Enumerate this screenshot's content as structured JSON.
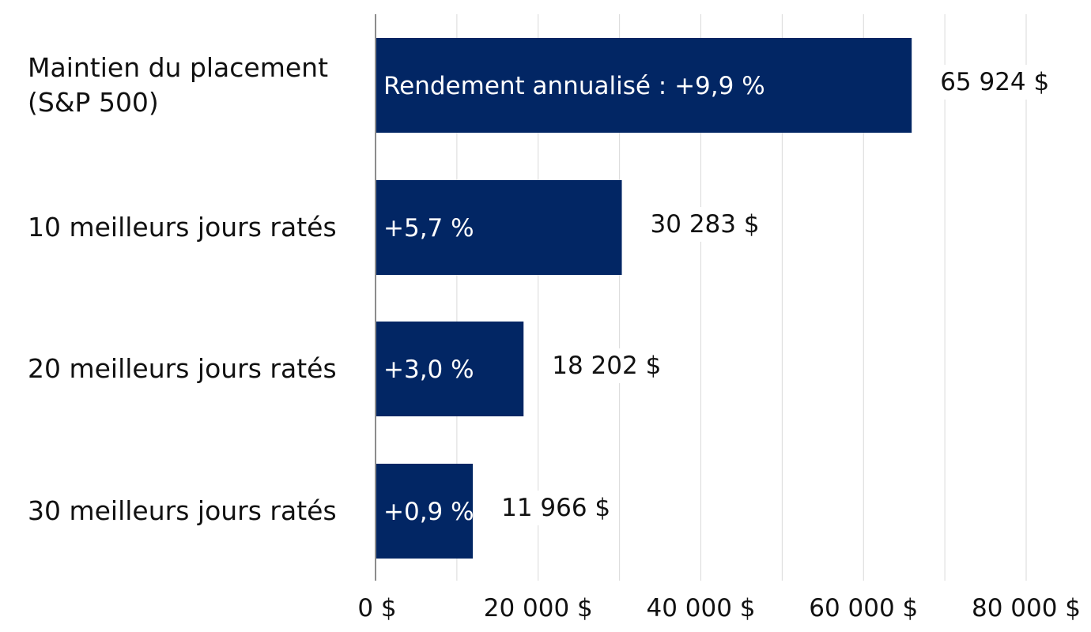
{
  "chart_data": {
    "type": "bar",
    "orientation": "horizontal",
    "categories": [
      [
        "Maintien du placement",
        "(S&P 500)"
      ],
      [
        "10 meilleurs jours ratés"
      ],
      [
        "20 meilleurs jours ratés"
      ],
      [
        "30 meilleurs jours ratés"
      ]
    ],
    "values": [
      65924,
      30283,
      18202,
      11966
    ],
    "value_labels": [
      "65 924 $",
      "30 283 $",
      "18 202 $",
      "11 966 $"
    ],
    "annualized_return_labels": [
      "Rendement annualisé : +9,9 %",
      "+5,7 %",
      "+3,0 %",
      "+0,9 %"
    ],
    "xlim": [
      0,
      80000
    ],
    "x_ticks": [
      0,
      20000,
      40000,
      60000,
      80000
    ],
    "x_tick_labels": [
      "0 $",
      "20 000 $",
      "40 000 $",
      "60 000 $",
      "80 000 $"
    ],
    "grid": "vertical",
    "legend": "none",
    "colors": {
      "bar": "#022664",
      "grid": "#d9d9d9",
      "axis": "#8c8c8c",
      "text": "#111111",
      "bar_text": "#ffffff"
    }
  }
}
